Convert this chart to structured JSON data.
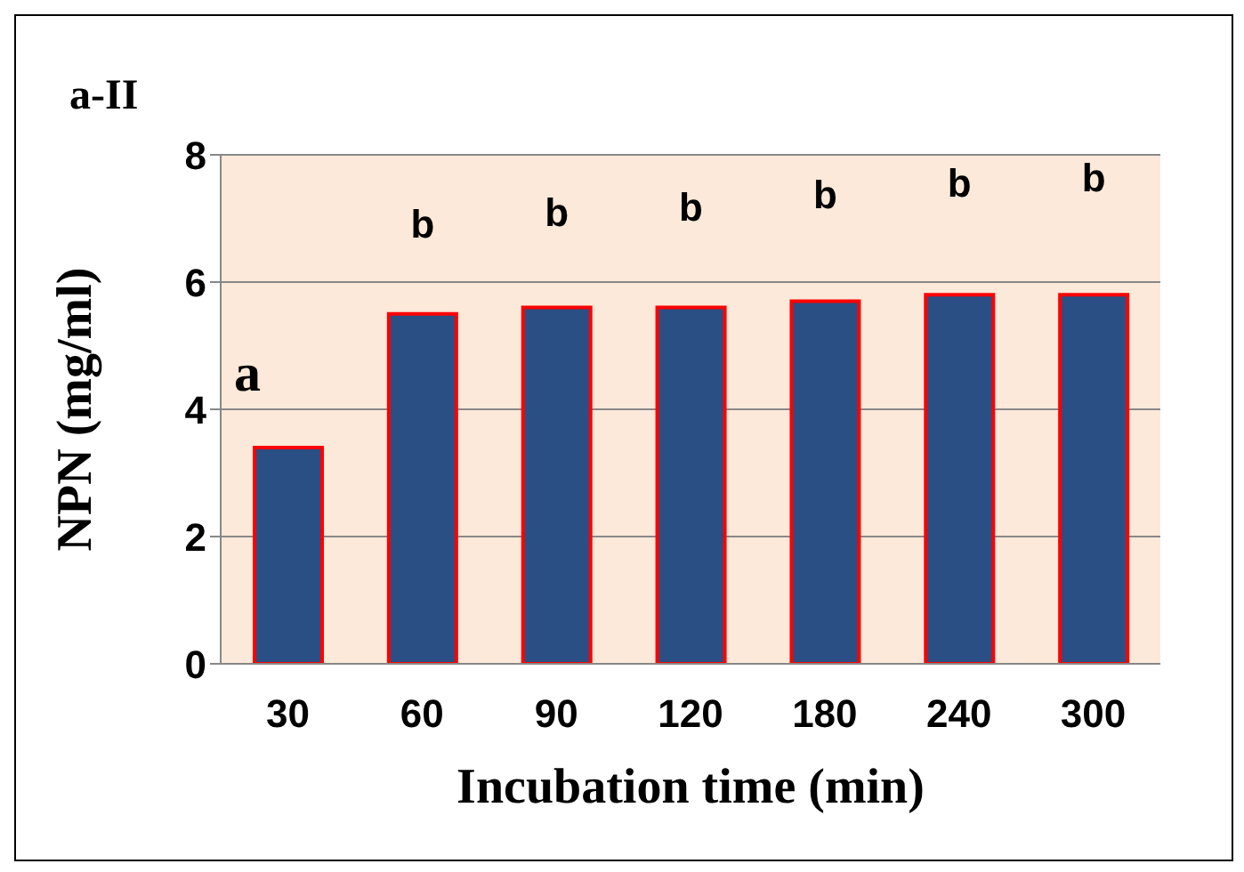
{
  "chart_data": {
    "type": "bar",
    "title": "a-II",
    "xlabel": "Incubation time (min)",
    "ylabel": "NPN (mg/ml)",
    "categories": [
      "30",
      "60",
      "90",
      "120",
      "180",
      "240",
      "300"
    ],
    "series": [
      {
        "color": "#2a4f85",
        "values": [
          3.4,
          5.5,
          5.6,
          5.6,
          5.7,
          5.8,
          5.8
        ]
      }
    ],
    "ylim": [
      0,
      8
    ],
    "yticks": [
      0,
      2,
      4,
      6,
      8
    ],
    "grid": "y",
    "annotations": [
      "a",
      "b",
      "b",
      "b",
      "b",
      "b",
      "b"
    ]
  }
}
